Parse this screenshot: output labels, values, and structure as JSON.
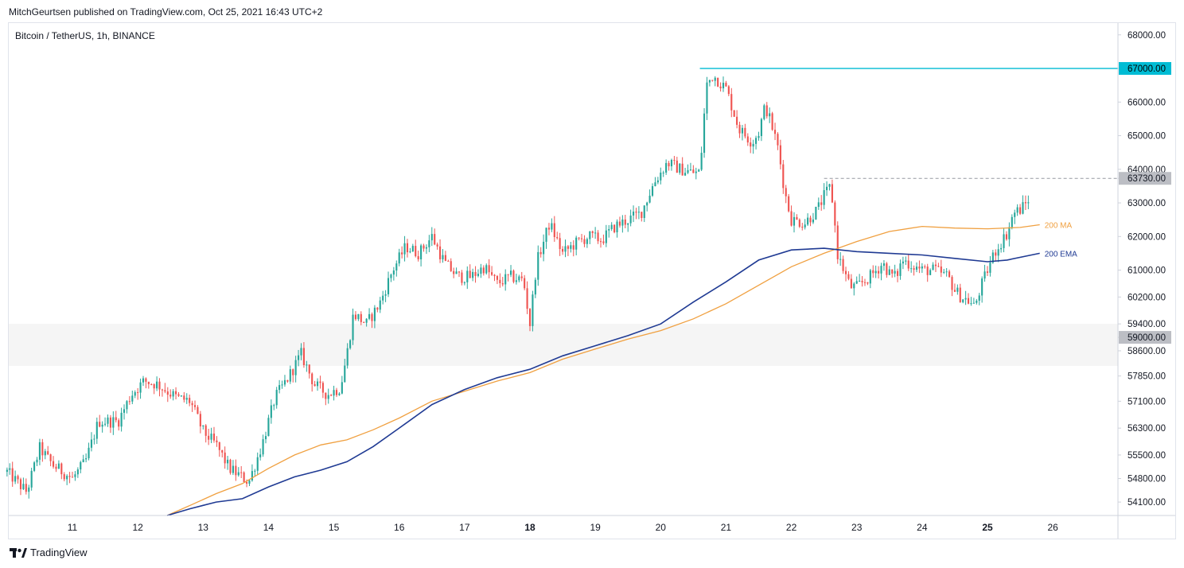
{
  "header": {
    "published_text": "MitchGeurtsen published on TradingView.com, Oct 25, 2021 16:43 UTC+2"
  },
  "chart_header": {
    "symbol_title": "Bitcoin / TetherUS, 1h, BINANCE"
  },
  "footer": {
    "brand": "TradingView"
  },
  "colors": {
    "up": "#26a69a",
    "down": "#ef5350",
    "ma": "#f0a040",
    "ema": "#1f3a93",
    "level_line": "#00bcd4",
    "zone": "#e9e9e9"
  },
  "chart_data": {
    "type": "candlestick",
    "title": "Bitcoin / TetherUS, 1h, BINANCE",
    "ylim": [
      53700,
      68350
    ],
    "y_ticks": [
      {
        "value": 68000,
        "label": "68000.00"
      },
      {
        "value": 67000,
        "label": "67000.00"
      },
      {
        "value": 66000,
        "label": "66000.00"
      },
      {
        "value": 65000,
        "label": "65000.00"
      },
      {
        "value": 64000,
        "label": "64000.00"
      },
      {
        "value": 63730,
        "label": "63730.00"
      },
      {
        "value": 63000,
        "label": "63000.00"
      },
      {
        "value": 62000,
        "label": "62000.00"
      },
      {
        "value": 61000,
        "label": "61000.00"
      },
      {
        "value": 60200,
        "label": "60200.00"
      },
      {
        "value": 59400,
        "label": "59400.00"
      },
      {
        "value": 59000,
        "label": "59000.00"
      },
      {
        "value": 58600,
        "label": "58600.00"
      },
      {
        "value": 57850,
        "label": "57850.00"
      },
      {
        "value": 57100,
        "label": "57100.00"
      },
      {
        "value": 56300,
        "label": "56300.00"
      },
      {
        "value": 55500,
        "label": "55500.00"
      },
      {
        "value": 54800,
        "label": "54800.00"
      },
      {
        "value": 54100,
        "label": "54100.00"
      }
    ],
    "x_range": [
      10.0,
      27.0
    ],
    "x_ticks": [
      {
        "value": 11,
        "label": "11",
        "bold": false
      },
      {
        "value": 12,
        "label": "12",
        "bold": false
      },
      {
        "value": 13,
        "label": "13",
        "bold": false
      },
      {
        "value": 14,
        "label": "14",
        "bold": false
      },
      {
        "value": 15,
        "label": "15",
        "bold": false
      },
      {
        "value": 16,
        "label": "16",
        "bold": false
      },
      {
        "value": 17,
        "label": "17",
        "bold": false
      },
      {
        "value": 18,
        "label": "18",
        "bold": true
      },
      {
        "value": 19,
        "label": "19",
        "bold": false
      },
      {
        "value": 20,
        "label": "20",
        "bold": false
      },
      {
        "value": 21,
        "label": "21",
        "bold": false
      },
      {
        "value": 22,
        "label": "22",
        "bold": false
      },
      {
        "value": 23,
        "label": "23",
        "bold": false
      },
      {
        "value": 24,
        "label": "24",
        "bold": false
      },
      {
        "value": 25,
        "label": "25",
        "bold": true
      },
      {
        "value": 26,
        "label": "26",
        "bold": false
      }
    ],
    "horizontal_levels": [
      {
        "name": "resistance-67000",
        "value": 67000,
        "x_start": 20.6,
        "style": "solid",
        "label": "67000.00"
      },
      {
        "name": "level-63730",
        "value": 63730,
        "x_start": 22.5,
        "style": "dashed",
        "label": "63730.00"
      }
    ],
    "zone": {
      "low": 58150,
      "high": 59400,
      "label": "59000.00"
    },
    "close_path": [
      [
        10.0,
        55000
      ],
      [
        10.3,
        54400
      ],
      [
        10.5,
        55700
      ],
      [
        10.7,
        55200
      ],
      [
        11.0,
        54800
      ],
      [
        11.2,
        55300
      ],
      [
        11.4,
        56500
      ],
      [
        11.7,
        56500
      ],
      [
        11.9,
        57300
      ],
      [
        12.1,
        57700
      ],
      [
        12.3,
        57600
      ],
      [
        12.6,
        57200
      ],
      [
        12.8,
        57100
      ],
      [
        13.0,
        56200
      ],
      [
        13.2,
        55800
      ],
      [
        13.4,
        55100
      ],
      [
        13.7,
        54700
      ],
      [
        13.9,
        55800
      ],
      [
        14.1,
        57200
      ],
      [
        14.3,
        57800
      ],
      [
        14.5,
        58500
      ],
      [
        14.7,
        57600
      ],
      [
        14.9,
        57300
      ],
      [
        15.1,
        57500
      ],
      [
        15.2,
        58500
      ],
      [
        15.3,
        59700
      ],
      [
        15.5,
        59400
      ],
      [
        15.7,
        60000
      ],
      [
        15.9,
        61000
      ],
      [
        16.1,
        61700
      ],
      [
        16.3,
        61500
      ],
      [
        16.5,
        62000
      ],
      [
        16.7,
        61200
      ],
      [
        16.9,
        60800
      ],
      [
        17.1,
        60800
      ],
      [
        17.3,
        61100
      ],
      [
        17.5,
        60600
      ],
      [
        17.7,
        60800
      ],
      [
        17.9,
        60700
      ],
      [
        18.0,
        59400
      ],
      [
        18.1,
        61200
      ],
      [
        18.3,
        62400
      ],
      [
        18.5,
        61500
      ],
      [
        18.7,
        61800
      ],
      [
        18.9,
        62000
      ],
      [
        19.1,
        61900
      ],
      [
        19.3,
        62300
      ],
      [
        19.5,
        62500
      ],
      [
        19.7,
        62700
      ],
      [
        19.9,
        63600
      ],
      [
        20.1,
        64200
      ],
      [
        20.3,
        64000
      ],
      [
        20.5,
        63900
      ],
      [
        20.6,
        63900
      ],
      [
        20.7,
        66500
      ],
      [
        20.8,
        66800
      ],
      [
        21.0,
        66400
      ],
      [
        21.2,
        65200
      ],
      [
        21.4,
        64800
      ],
      [
        21.5,
        65100
      ],
      [
        21.6,
        65900
      ],
      [
        21.7,
        65300
      ],
      [
        21.8,
        64600
      ],
      [
        21.9,
        63300
      ],
      [
        22.0,
        62500
      ],
      [
        22.2,
        62400
      ],
      [
        22.4,
        62800
      ],
      [
        22.5,
        63200
      ],
      [
        22.6,
        63500
      ],
      [
        22.65,
        62700
      ],
      [
        22.7,
        61500
      ],
      [
        22.8,
        61000
      ],
      [
        22.9,
        60500
      ],
      [
        23.0,
        60500
      ],
      [
        23.2,
        60800
      ],
      [
        23.4,
        61200
      ],
      [
        23.5,
        60900
      ],
      [
        23.6,
        60800
      ],
      [
        23.7,
        61300
      ],
      [
        23.8,
        61200
      ],
      [
        24.0,
        61000
      ],
      [
        24.2,
        61000
      ],
      [
        24.4,
        60800
      ],
      [
        24.5,
        60400
      ],
      [
        24.6,
        60200
      ],
      [
        24.7,
        60100
      ],
      [
        24.8,
        59900
      ],
      [
        24.9,
        60500
      ],
      [
        25.0,
        61000
      ],
      [
        25.1,
        61500
      ],
      [
        25.2,
        61800
      ],
      [
        25.3,
        62100
      ],
      [
        25.4,
        62700
      ],
      [
        25.5,
        62800
      ],
      [
        25.6,
        63000
      ],
      [
        25.65,
        63200
      ]
    ],
    "series": [
      {
        "name": "200 MA",
        "label": "200 MA",
        "color": "#f0a040",
        "points": [
          [
            12.45,
            53700
          ],
          [
            12.8,
            54000
          ],
          [
            13.2,
            54350
          ],
          [
            13.6,
            54650
          ],
          [
            14.0,
            55100
          ],
          [
            14.4,
            55500
          ],
          [
            14.8,
            55800
          ],
          [
            15.2,
            55950
          ],
          [
            15.6,
            56250
          ],
          [
            16.0,
            56600
          ],
          [
            16.5,
            57100
          ],
          [
            17.0,
            57400
          ],
          [
            17.5,
            57700
          ],
          [
            18.0,
            57950
          ],
          [
            18.5,
            58350
          ],
          [
            19.0,
            58650
          ],
          [
            19.5,
            58950
          ],
          [
            20.0,
            59200
          ],
          [
            20.5,
            59550
          ],
          [
            21.0,
            60000
          ],
          [
            21.5,
            60550
          ],
          [
            22.0,
            61100
          ],
          [
            22.5,
            61500
          ],
          [
            23.0,
            61850
          ],
          [
            23.5,
            62150
          ],
          [
            24.0,
            62300
          ],
          [
            24.5,
            62250
          ],
          [
            25.0,
            62230
          ],
          [
            25.5,
            62270
          ],
          [
            25.8,
            62350
          ]
        ]
      },
      {
        "name": "200 EMA",
        "label": "200 EMA",
        "color": "#1f3a93",
        "points": [
          [
            12.45,
            53700
          ],
          [
            12.8,
            53900
          ],
          [
            13.2,
            54100
          ],
          [
            13.6,
            54200
          ],
          [
            14.0,
            54550
          ],
          [
            14.4,
            54850
          ],
          [
            14.8,
            55050
          ],
          [
            15.2,
            55300
          ],
          [
            15.6,
            55750
          ],
          [
            16.0,
            56300
          ],
          [
            16.5,
            57000
          ],
          [
            17.0,
            57450
          ],
          [
            17.5,
            57800
          ],
          [
            18.0,
            58050
          ],
          [
            18.5,
            58450
          ],
          [
            19.0,
            58750
          ],
          [
            19.5,
            59050
          ],
          [
            20.0,
            59400
          ],
          [
            20.5,
            60050
          ],
          [
            21.0,
            60650
          ],
          [
            21.5,
            61300
          ],
          [
            22.0,
            61600
          ],
          [
            22.5,
            61650
          ],
          [
            23.0,
            61550
          ],
          [
            23.5,
            61500
          ],
          [
            24.0,
            61450
          ],
          [
            24.5,
            61350
          ],
          [
            25.0,
            61250
          ],
          [
            25.3,
            61300
          ],
          [
            25.8,
            61500
          ]
        ]
      }
    ]
  }
}
